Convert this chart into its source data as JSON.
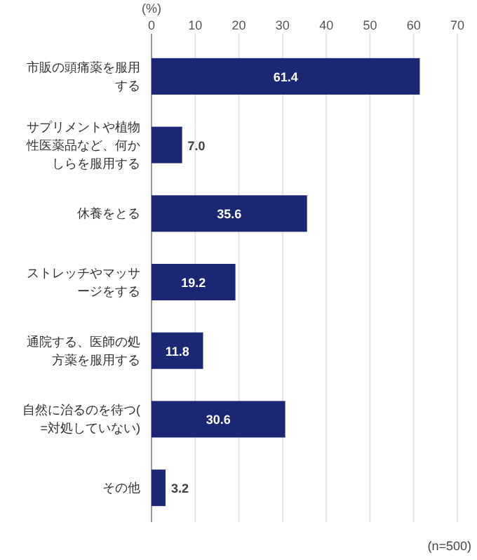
{
  "chart_data": {
    "type": "bar",
    "orientation": "horizontal",
    "xlabel": "(%)",
    "categories": [
      "市販の頭痛薬を服用する",
      "サプリメントや植物性医薬品など、何かしらを服用する",
      "休養をとる",
      "ストレッチやマッサージをする",
      "通院する、医師の処方薬を服用する",
      "自然に治るのを待つ(=対処していない)",
      "その他"
    ],
    "value_labels": [
      "61.4",
      "7.0",
      "35.6",
      "19.2",
      "11.8",
      "30.6",
      "3.2"
    ],
    "values": [
      61.4,
      7.0,
      35.6,
      19.2,
      11.8,
      30.6,
      3.2
    ],
    "color": "#1b2774",
    "xlim": [
      0,
      70
    ],
    "xticks": [
      0,
      10,
      20,
      30,
      40,
      50,
      60,
      70
    ],
    "grid": "x",
    "annotations": [
      "(n=500)"
    ]
  }
}
